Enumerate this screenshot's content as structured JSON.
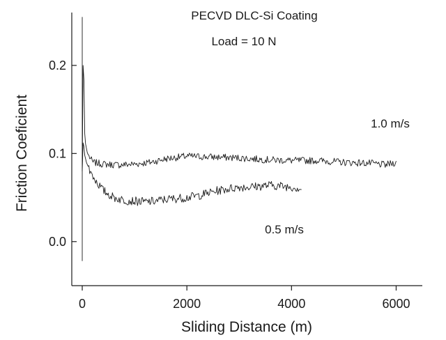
{
  "chart_data": {
    "type": "line",
    "title": "PECVD  DLC-Si  Coating",
    "subtitle": "Load = 10 N",
    "xlabel": "Sliding Distance (m)",
    "ylabel": "Friction Coeficient",
    "xlim": [
      -200,
      6500
    ],
    "ylim": [
      -0.05,
      0.26
    ],
    "xticks": [
      0,
      2000,
      4000,
      6000
    ],
    "xtick_labels": [
      "0",
      "2000",
      "4000",
      "6000"
    ],
    "yticks": [
      0.0,
      0.1,
      0.2
    ],
    "ytick_labels": [
      "0.0",
      "0.1",
      "0.2"
    ],
    "grid": false,
    "legend": "none",
    "line_color": "#1a1a1a",
    "series": [
      {
        "name": "1.0 m/s",
        "x": [
          0,
          20,
          50,
          100,
          200,
          400,
          700,
          1000,
          1300,
          1600,
          2000,
          2500,
          3000,
          3500,
          4000,
          4500,
          5000,
          5500,
          5800,
          6000
        ],
        "y": [
          0.08,
          0.23,
          0.115,
          0.1,
          0.09,
          0.088,
          0.087,
          0.088,
          0.09,
          0.094,
          0.097,
          0.096,
          0.095,
          0.093,
          0.092,
          0.092,
          0.09,
          0.089,
          0.087,
          0.09
        ],
        "noise": 0.004
      },
      {
        "name": "0.5 m/s",
        "x": [
          0,
          20,
          40,
          80,
          150,
          250,
          400,
          600,
          800,
          1000,
          1200,
          1400,
          1600,
          1800,
          2000,
          2200,
          2400,
          2600,
          2800,
          3000,
          3200,
          3400,
          3600,
          3800,
          4000,
          4200
        ],
        "y": [
          0.08,
          0.12,
          0.1,
          0.09,
          0.08,
          0.07,
          0.058,
          0.05,
          0.047,
          0.046,
          0.045,
          0.046,
          0.048,
          0.049,
          0.05,
          0.052,
          0.055,
          0.058,
          0.06,
          0.062,
          0.062,
          0.063,
          0.064,
          0.063,
          0.062,
          0.06
        ],
        "noise": 0.005
      }
    ],
    "spike": {
      "x": 0,
      "y_min": -0.022,
      "y_max": 0.255
    }
  }
}
